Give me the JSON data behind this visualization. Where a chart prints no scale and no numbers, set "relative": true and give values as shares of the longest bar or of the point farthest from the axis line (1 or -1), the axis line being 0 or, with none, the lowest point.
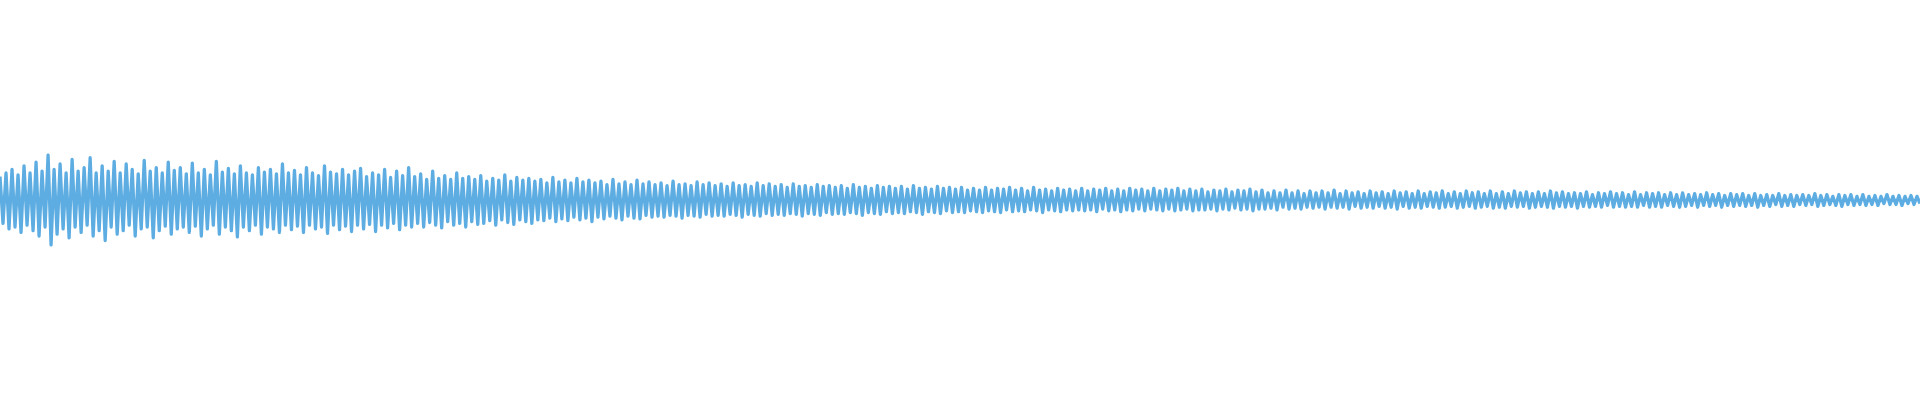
{
  "chart_data": {
    "type": "line",
    "relative": true,
    "color": "#5dade2",
    "marker": "none",
    "line_style": "solid",
    "categories": [
      null,
      null,
      null,
      null,
      null,
      null,
      null,
      null,
      null,
      null,
      null,
      null,
      null,
      null,
      null,
      null,
      null,
      null,
      null,
      null,
      null,
      null,
      null,
      null,
      null,
      null,
      null,
      null,
      null,
      null,
      null,
      null,
      null,
      null,
      null,
      null,
      null,
      null,
      null,
      null,
      null,
      null,
      null,
      null,
      null,
      null,
      null,
      null,
      null,
      null,
      null,
      null,
      null,
      null,
      null,
      null,
      null,
      null,
      null,
      null,
      null,
      null,
      null,
      null,
      null,
      null,
      null,
      null,
      null,
      null,
      null,
      null,
      null,
      null,
      null,
      null,
      null,
      null,
      null,
      null,
      null,
      null,
      null,
      null,
      null,
      null,
      null,
      null,
      null,
      null,
      null,
      null,
      null,
      null,
      null,
      null,
      null,
      null,
      null,
      null,
      null,
      null,
      null,
      null,
      null,
      null,
      null,
      null,
      null,
      null,
      null,
      null,
      null,
      null,
      null,
      null,
      null,
      null,
      null,
      null,
      null,
      null,
      null,
      null,
      null,
      null,
      null,
      null,
      null,
      null,
      null,
      null,
      null,
      null,
      null,
      null,
      null,
      null,
      null,
      null,
      null,
      null,
      null,
      null,
      null,
      null,
      null,
      null,
      null,
      null,
      null,
      null,
      null,
      null,
      null,
      null,
      null,
      null,
      null,
      null,
      null,
      null,
      null,
      null,
      null,
      null,
      null,
      null,
      null,
      null,
      null,
      null,
      null,
      null,
      null,
      null,
      null,
      null,
      null,
      null,
      null,
      null,
      null,
      null,
      null,
      null,
      null,
      null,
      null,
      null,
      null,
      null,
      null,
      null,
      null,
      null,
      null,
      null,
      null,
      null,
      null,
      null,
      null,
      null,
      null,
      null,
      null,
      null,
      null,
      null,
      null,
      null,
      null,
      null,
      null,
      null,
      null,
      null,
      null,
      null,
      null,
      null,
      null,
      null,
      null,
      null,
      null,
      null,
      null,
      null,
      null,
      null,
      null,
      null,
      null,
      null,
      null,
      null,
      null,
      null,
      null,
      null,
      null,
      null,
      null,
      null,
      null,
      null,
      null,
      null,
      null,
      null,
      null,
      null,
      null,
      null,
      null,
      null,
      null,
      null,
      null,
      null,
      null,
      null,
      null,
      null,
      null,
      null,
      null,
      null,
      null,
      null,
      null,
      null,
      null,
      null,
      null,
      null,
      null,
      null,
      null,
      null,
      null,
      null,
      null,
      null,
      null,
      null,
      null,
      null,
      null,
      null,
      null,
      null,
      null,
      null,
      null,
      null,
      null,
      null,
      null,
      null,
      null,
      null,
      null,
      null,
      null,
      null,
      null,
      null,
      null,
      null,
      null,
      null,
      null,
      null,
      null,
      null,
      null,
      null,
      null,
      null,
      null,
      null,
      null,
      null,
      null,
      null,
      null,
      null,
      null,
      null,
      null,
      null,
      null,
      null,
      null,
      null,
      null,
      null,
      null,
      null,
      null,
      null,
      null,
      null,
      null,
      null,
      null,
      null,
      null,
      null,
      null,
      null,
      null,
      null,
      null,
      null,
      null,
      null,
      null,
      null,
      null,
      null,
      null,
      null,
      null,
      null,
      null,
      null,
      null,
      null,
      null,
      null,
      null,
      null,
      null,
      null,
      null,
      null,
      null,
      null,
      null,
      null,
      null,
      null,
      null,
      null,
      null,
      null,
      null,
      null,
      null,
      null,
      null,
      null,
      null,
      null,
      null,
      null,
      null,
      null,
      null,
      null,
      null,
      null,
      null,
      null,
      null,
      null,
      null,
      null,
      null,
      null,
      null,
      null,
      null,
      null,
      null,
      null,
      null,
      null,
      null,
      null,
      null,
      null,
      null,
      null,
      null,
      null,
      null,
      null,
      null,
      null,
      null,
      null,
      null,
      null,
      null,
      null,
      null,
      null,
      null,
      null,
      null,
      null,
      null,
      null,
      null,
      null,
      null,
      null,
      null,
      null,
      null,
      null,
      null,
      null,
      null,
      null,
      null,
      null,
      null,
      null,
      null,
      null,
      null,
      null,
      null,
      null,
      null,
      null,
      null,
      null,
      null,
      null,
      null,
      null,
      null,
      null,
      null,
      null,
      null,
      null,
      null,
      null,
      null,
      null,
      null,
      null,
      null,
      null,
      null,
      null,
      null,
      null,
      null,
      null,
      null,
      null,
      null,
      null,
      null,
      null,
      null,
      null,
      null,
      null,
      null,
      null,
      null,
      null,
      null,
      null,
      null,
      null,
      null,
      null,
      null,
      null,
      null,
      null,
      null,
      null,
      null,
      null,
      null,
      null,
      null,
      null,
      null,
      null,
      null,
      null,
      null,
      null,
      null,
      null,
      null,
      null,
      null,
      null,
      null,
      null,
      null,
      null,
      null,
      null,
      null,
      null,
      null,
      null,
      null,
      null,
      null,
      null,
      null,
      null,
      null,
      null,
      null,
      null,
      null,
      null,
      null,
      null,
      null,
      null,
      null,
      null,
      null,
      null,
      null,
      null,
      null,
      null,
      null,
      null,
      null,
      null,
      null,
      null,
      null,
      null,
      null,
      null,
      null,
      null,
      null,
      null,
      null,
      null,
      null,
      null,
      null,
      null,
      null,
      null,
      null,
      null,
      null,
      null,
      null,
      null,
      null,
      null,
      null,
      null,
      null,
      null,
      null,
      null,
      null,
      null,
      null,
      null,
      null,
      null,
      null,
      null,
      null,
      null,
      null,
      null,
      null,
      null,
      null,
      null,
      null,
      null,
      null,
      null,
      null,
      null,
      null,
      null,
      null,
      null,
      null,
      null
    ],
    "values": [
      0.76,
      0.24,
      0.8,
      0.18,
      0.84,
      0.2,
      0.78,
      0.14,
      0.88,
      0.22,
      0.8,
      0.16,
      0.92,
      0.1,
      0.82,
      0.2,
      1.0,
      0.0,
      0.84,
      0.12,
      0.9,
      0.18,
      0.8,
      0.08,
      0.95,
      0.2,
      0.82,
      0.14,
      0.86,
      0.22,
      0.97,
      0.1,
      0.8,
      0.16,
      0.88,
      0.05,
      0.82,
      0.2,
      0.93,
      0.12,
      0.8,
      0.16,
      0.9,
      0.22,
      0.84,
      0.1,
      0.79,
      0.18,
      0.94,
      0.2,
      0.82,
      0.08,
      0.86,
      0.16,
      0.8,
      0.21,
      0.92,
      0.12,
      0.83,
      0.18,
      0.86,
      0.2,
      0.79,
      0.14,
      0.91,
      0.21,
      0.8,
      0.1,
      0.84,
      0.18,
      0.78,
      0.22,
      0.93,
      0.12,
      0.81,
      0.2,
      0.85,
      0.16,
      0.79,
      0.09,
      0.88,
      0.2,
      0.8,
      0.16,
      0.78,
      0.22,
      0.86,
      0.12,
      0.81,
      0.2,
      0.84,
      0.18,
      0.79,
      0.14,
      0.9,
      0.22,
      0.8,
      0.17,
      0.83,
      0.21,
      0.78,
      0.14,
      0.86,
      0.22,
      0.8,
      0.18,
      0.77,
      0.2,
      0.88,
      0.13,
      0.81,
      0.22,
      0.79,
      0.17,
      0.84,
      0.21,
      0.78,
      0.15,
      0.82,
      0.22,
      0.85,
      0.18,
      0.76,
      0.23,
      0.8,
      0.15,
      0.78,
      0.22,
      0.84,
      0.19,
      0.75,
      0.24,
      0.82,
      0.17,
      0.77,
      0.22,
      0.86,
      0.2,
      0.76,
      0.24,
      0.79,
      0.2,
      0.73,
      0.25,
      0.82,
      0.22,
      0.74,
      0.19,
      0.77,
      0.26,
      0.73,
      0.22,
      0.8,
      0.24,
      0.74,
      0.2,
      0.76,
      0.26,
      0.73,
      0.23,
      0.77,
      0.24,
      0.71,
      0.27,
      0.74,
      0.22,
      0.72,
      0.28,
      0.78,
      0.25,
      0.71,
      0.23,
      0.75,
      0.28,
      0.72,
      0.26,
      0.74,
      0.24,
      0.71,
      0.28,
      0.73,
      0.27,
      0.69,
      0.3,
      0.75,
      0.26,
      0.7,
      0.29,
      0.72,
      0.27,
      0.69,
      0.31,
      0.74,
      0.28,
      0.7,
      0.3,
      0.72,
      0.26,
      0.69,
      0.31,
      0.71,
      0.29,
      0.67,
      0.32,
      0.73,
      0.3,
      0.68,
      0.28,
      0.7,
      0.32,
      0.67,
      0.3,
      0.72,
      0.29,
      0.68,
      0.33,
      0.7,
      0.31,
      0.67,
      0.32,
      0.69,
      0.31,
      0.66,
      0.33,
      0.71,
      0.32,
      0.67,
      0.3,
      0.68,
      0.33,
      0.66,
      0.32,
      0.7,
      0.31,
      0.67,
      0.34,
      0.69,
      0.32,
      0.66,
      0.33,
      0.68,
      0.32,
      0.65,
      0.34,
      0.69,
      0.33,
      0.66,
      0.31,
      0.67,
      0.34,
      0.65,
      0.33,
      0.69,
      0.32,
      0.66,
      0.35,
      0.68,
      0.33,
      0.65,
      0.34,
      0.67,
      0.33,
      0.64,
      0.35,
      0.68,
      0.34,
      0.65,
      0.32,
      0.66,
      0.35,
      0.64,
      0.34,
      0.67,
      0.33,
      0.65,
      0.36,
      0.66,
      0.34,
      0.64,
      0.35,
      0.66,
      0.34,
      0.63,
      0.36,
      0.67,
      0.35,
      0.64,
      0.33,
      0.65,
      0.36,
      0.63,
      0.35,
      0.66,
      0.34,
      0.64,
      0.37,
      0.65,
      0.35,
      0.63,
      0.36,
      0.65,
      0.35,
      0.62,
      0.37,
      0.66,
      0.36,
      0.63,
      0.34,
      0.64,
      0.37,
      0.62,
      0.36,
      0.65,
      0.35,
      0.63,
      0.38,
      0.64,
      0.36,
      0.62,
      0.37,
      0.64,
      0.36,
      0.61,
      0.38,
      0.63,
      0.37,
      0.61,
      0.36,
      0.64,
      0.38,
      0.61,
      0.37,
      0.63,
      0.36,
      0.62,
      0.39,
      0.64,
      0.37,
      0.61,
      0.38,
      0.63,
      0.37,
      0.6,
      0.39,
      0.64,
      0.38,
      0.61,
      0.36,
      0.62,
      0.39,
      0.6,
      0.38,
      0.63,
      0.37,
      0.61,
      0.39,
      0.62,
      0.38,
      0.6,
      0.39,
      0.63,
      0.38,
      0.6,
      0.39,
      0.62,
      0.37,
      0.61,
      0.4,
      0.63,
      0.38,
      0.6,
      0.39,
      0.62,
      0.37,
      0.6,
      0.39,
      0.63,
      0.38,
      0.61,
      0.4,
      0.62,
      0.38,
      0.6,
      0.4,
      0.63,
      0.39,
      0.6,
      0.38,
      0.62,
      0.4,
      0.61,
      0.38,
      0.63,
      0.39,
      0.6,
      0.4,
      0.62,
      0.38,
      0.6,
      0.39,
      0.62,
      0.39,
      0.59,
      0.4,
      0.61,
      0.38,
      0.6,
      0.4,
      0.62,
      0.39,
      0.59,
      0.41,
      0.61,
      0.39,
      0.6,
      0.4,
      0.62,
      0.38,
      0.59,
      0.4,
      0.61,
      0.4,
      0.58,
      0.41,
      0.6,
      0.39,
      0.58,
      0.42,
      0.61,
      0.4,
      0.58,
      0.41,
      0.6,
      0.4,
      0.57,
      0.42,
      0.6,
      0.41,
      0.58,
      0.42,
      0.6,
      0.4,
      0.58,
      0.42,
      0.61,
      0.41,
      0.57,
      0.42,
      0.6,
      0.4,
      0.58,
      0.43,
      0.59,
      0.41,
      0.57,
      0.42,
      0.6,
      0.41,
      0.58,
      0.43,
      0.59,
      0.41,
      0.57,
      0.42,
      0.6,
      0.4,
      0.58,
      0.43,
      0.59,
      0.41,
      0.57,
      0.42,
      0.6,
      0.41,
      0.57,
      0.43,
      0.59,
      0.42,
      0.58,
      0.41,
      0.6,
      0.42,
      0.57,
      0.43,
      0.59,
      0.41,
      0.57,
      0.42,
      0.6,
      0.43,
      0.58,
      0.41,
      0.59,
      0.42,
      0.57,
      0.43,
      0.6,
      0.41,
      0.57,
      0.42,
      0.59,
      0.41,
      0.57,
      0.43,
      0.6,
      0.42,
      0.58,
      0.43,
      0.59,
      0.41,
      0.57,
      0.42,
      0.59,
      0.43,
      0.57,
      0.42,
      0.6,
      0.41,
      0.58,
      0.43,
      0.59,
      0.42,
      0.57,
      0.43,
      0.58,
      0.41,
      0.57,
      0.43,
      0.59,
      0.42,
      0.56,
      0.43,
      0.58,
      0.42,
      0.57,
      0.44,
      0.59,
      0.42,
      0.57,
      0.43,
      0.58,
      0.42,
      0.56,
      0.43,
      0.59,
      0.42,
      0.56,
      0.44,
      0.58,
      0.42,
      0.57,
      0.43,
      0.58,
      0.42,
      0.56,
      0.44,
      0.58,
      0.43,
      0.56,
      0.42,
      0.58,
      0.43,
      0.56,
      0.44,
      0.57,
      0.42,
      0.56,
      0.44,
      0.58,
      0.43,
      0.56,
      0.44,
      0.57,
      0.42,
      0.55,
      0.44,
      0.57,
      0.43,
      0.56,
      0.44,
      0.57,
      0.43,
      0.55,
      0.44,
      0.57,
      0.42,
      0.55,
      0.44,
      0.56,
      0.43,
      0.55,
      0.45,
      0.57,
      0.43,
      0.55,
      0.44,
      0.56,
      0.43,
      0.55,
      0.45,
      0.56,
      0.44,
      0.55,
      0.45,
      0.57,
      0.43,
      0.55,
      0.44,
      0.56,
      0.45,
      0.54,
      0.44,
      0.56,
      0.43,
      0.55,
      0.45,
      0.56,
      0.44,
      0.54,
      0.45,
      0.56,
      0.44,
      0.54,
      0.45,
      0.55,
      0.44,
      0.54,
      0.46,
      0.56,
      0.45,
      0.54,
      0.45,
      0.55,
      0.44,
      0.54,
      0.46,
      0.55,
      0.45,
      0.54,
      0.46
    ]
  }
}
